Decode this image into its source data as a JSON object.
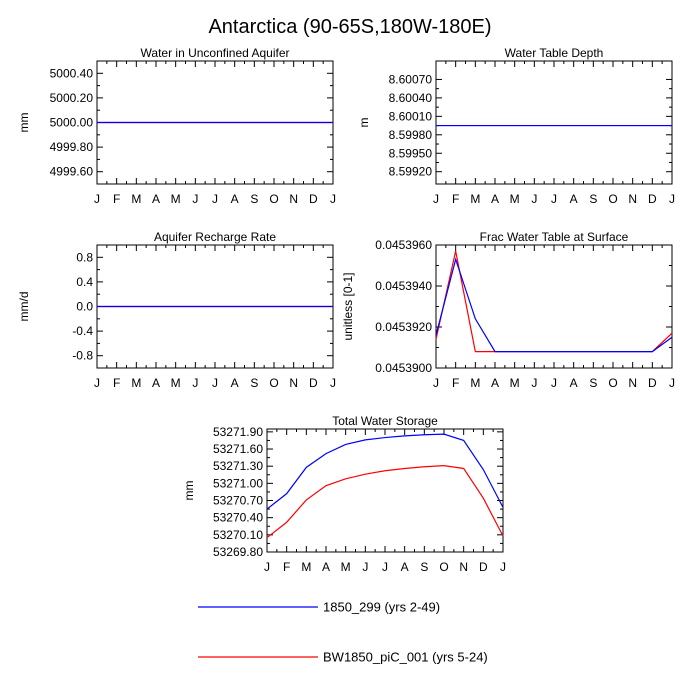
{
  "figure": {
    "title": "Antarctica (90-65S,180W-180E)"
  },
  "colors": {
    "series_1": "#0000ff",
    "series_2": "#ff0000",
    "axes": "#000000"
  },
  "legend": {
    "placement": "bottom-center",
    "entries": [
      {
        "label": "1850_299 (yrs 2-49)",
        "color": "#0000ff"
      },
      {
        "label": "BW1850_piC_001 (yrs 5-24)",
        "color": "#ff0000"
      }
    ]
  },
  "chart_data": [
    {
      "type": "line",
      "title": "Water in Unconfined Aquifer",
      "ylabel": "mm",
      "x": [
        "J",
        "F",
        "M",
        "A",
        "M",
        "J",
        "J",
        "A",
        "S",
        "O",
        "N",
        "D",
        "J"
      ],
      "ylim": [
        4999.5,
        5000.5
      ],
      "yticks": [
        4999.6,
        4999.8,
        5000.0,
        5000.2,
        5000.4
      ],
      "ytick_labels": [
        "4999.60",
        "4999.80",
        "5000.00",
        "5000.20",
        "5000.40"
      ],
      "series": [
        {
          "name": "1850_299 (yrs 2-49)",
          "color": "#0000ff",
          "values": [
            5000,
            5000,
            5000,
            5000,
            5000,
            5000,
            5000,
            5000,
            5000,
            5000,
            5000,
            5000,
            5000
          ]
        },
        {
          "name": "BW1850_piC_001 (yrs 5-24)",
          "color": "#ff0000",
          "values": [
            5000,
            5000,
            5000,
            5000,
            5000,
            5000,
            5000,
            5000,
            5000,
            5000,
            5000,
            5000,
            5000
          ]
        }
      ]
    },
    {
      "type": "line",
      "title": "Water Table Depth",
      "ylabel": "m",
      "x": [
        "J",
        "F",
        "M",
        "A",
        "M",
        "J",
        "J",
        "A",
        "S",
        "O",
        "N",
        "D",
        "J"
      ],
      "ylim": [
        8.599,
        8.601
      ],
      "yticks": [
        8.5992,
        8.5995,
        8.5998,
        8.6001,
        8.6004,
        8.6007
      ],
      "ytick_labels": [
        "8.59920",
        "8.59950",
        "8.59980",
        "8.60010",
        "8.60040",
        "8.60070"
      ],
      "series": [
        {
          "name": "1850_299 (yrs 2-49)",
          "color": "#0000ff",
          "values": [
            8.59995,
            8.59995,
            8.59995,
            8.59995,
            8.59995,
            8.59995,
            8.59995,
            8.59995,
            8.59995,
            8.59995,
            8.59995,
            8.59995,
            8.59995
          ]
        },
        {
          "name": "BW1850_piC_001 (yrs 5-24)",
          "color": "#ff0000",
          "values": [
            8.59995,
            8.59995,
            8.59995,
            8.59995,
            8.59995,
            8.59995,
            8.59995,
            8.59995,
            8.59995,
            8.59995,
            8.59995,
            8.59995,
            8.59995
          ]
        }
      ]
    },
    {
      "type": "line",
      "title": "Aquifer Recharge Rate",
      "ylabel": "mm/d",
      "x": [
        "J",
        "F",
        "M",
        "A",
        "M",
        "J",
        "J",
        "A",
        "S",
        "O",
        "N",
        "D",
        "J"
      ],
      "ylim": [
        -1.0,
        1.0
      ],
      "yticks": [
        -0.8,
        -0.4,
        0.0,
        0.4,
        0.8
      ],
      "ytick_labels": [
        "-0.8",
        "-0.4",
        "0.0",
        "0.4",
        "0.8"
      ],
      "series": [
        {
          "name": "1850_299 (yrs 2-49)",
          "color": "#0000ff",
          "values": [
            0,
            0,
            0,
            0,
            0,
            0,
            0,
            0,
            0,
            0,
            0,
            0,
            0
          ]
        },
        {
          "name": "BW1850_piC_001 (yrs 5-24)",
          "color": "#ff0000",
          "values": [
            0,
            0,
            0,
            0,
            0,
            0,
            0,
            0,
            0,
            0,
            0,
            0,
            0
          ]
        }
      ]
    },
    {
      "type": "line",
      "title": "Frac Water Table at Surface",
      "ylabel": "unitless [0-1]",
      "x": [
        "J",
        "F",
        "M",
        "A",
        "M",
        "J",
        "J",
        "A",
        "S",
        "O",
        "N",
        "D",
        "J"
      ],
      "ylim": [
        0.04539,
        0.045396
      ],
      "yticks": [
        0.04539,
        0.045392,
        0.045394,
        0.045396
      ],
      "ytick_labels": [
        "0.0453900",
        "0.0453920",
        "0.0453940",
        "0.0453960"
      ],
      "series": [
        {
          "name": "1850_299 (yrs 2-49)",
          "color": "#0000ff",
          "values": [
            0.0453916,
            0.0453953,
            0.0453924,
            0.0453908,
            0.0453908,
            0.0453908,
            0.0453908,
            0.0453908,
            0.0453908,
            0.0453908,
            0.0453908,
            0.0453908,
            0.0453915
          ]
        },
        {
          "name": "BW1850_piC_001 (yrs 5-24)",
          "color": "#ff0000",
          "values": [
            0.0453914,
            0.0453957,
            0.0453908,
            0.0453908,
            0.0453908,
            0.0453908,
            0.0453908,
            0.0453908,
            0.0453908,
            0.0453908,
            0.0453908,
            0.0453908,
            0.0453917
          ]
        }
      ]
    },
    {
      "type": "line",
      "title": "Total Water Storage",
      "ylabel": "mm",
      "x": [
        "J",
        "F",
        "M",
        "A",
        "M",
        "J",
        "J",
        "A",
        "S",
        "O",
        "N",
        "D",
        "J"
      ],
      "ylim": [
        53269.8,
        53271.95
      ],
      "yticks": [
        53269.8,
        53270.1,
        53270.4,
        53270.7,
        53271.0,
        53271.3,
        53271.6,
        53271.9
      ],
      "ytick_labels": [
        "53269.80",
        "53270.10",
        "53270.40",
        "53270.70",
        "53271.00",
        "53271.30",
        "53271.60",
        "53271.90"
      ],
      "series": [
        {
          "name": "1850_299 (yrs 2-49)",
          "color": "#0000ff",
          "values": [
            53270.55,
            53270.82,
            53271.28,
            53271.52,
            53271.68,
            53271.76,
            53271.8,
            53271.83,
            53271.85,
            53271.86,
            53271.75,
            53271.24,
            53270.58
          ]
        },
        {
          "name": "BW1850_piC_001 (yrs 5-24)",
          "color": "#ff0000",
          "values": [
            53270.05,
            53270.32,
            53270.71,
            53270.96,
            53271.08,
            53271.16,
            53271.22,
            53271.26,
            53271.29,
            53271.31,
            53271.26,
            53270.74,
            53270.08
          ]
        }
      ]
    }
  ]
}
